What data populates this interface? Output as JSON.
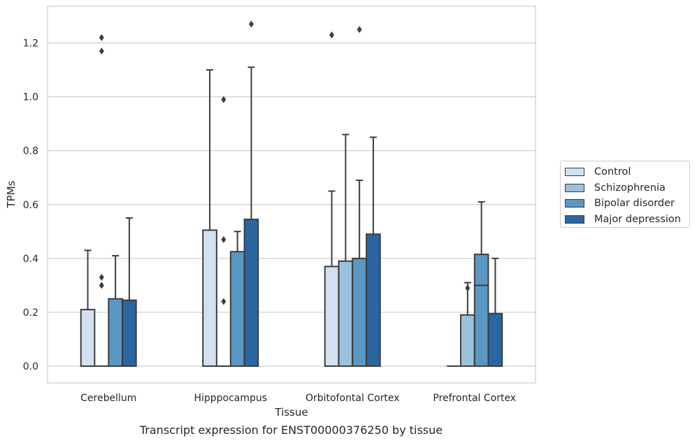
{
  "caption": "Transcript expression for ENST00000376250 by tissue",
  "chart_data": {
    "type": "box",
    "xlabel": "Tissue",
    "ylabel": "TPMs",
    "ylim": [
      -0.06,
      1.34
    ],
    "yticks": [
      0.0,
      0.2,
      0.4,
      0.6,
      0.8,
      1.0,
      1.2
    ],
    "ytick_labels": [
      "0.0",
      "0.2",
      "0.4",
      "0.6",
      "0.8",
      "1.0",
      "1.2"
    ],
    "grid": "horizontal",
    "legend_position": "right",
    "categories": [
      "Cerebellum",
      "Hipppocampus",
      "Orbitofontal Cortex",
      "Prefrontal Cortex"
    ],
    "series": [
      {
        "name": "Control",
        "color": "#d2e0ef",
        "boxes": [
          {
            "q1": 0.0,
            "median": 0.0,
            "q3": 0.21,
            "whisker_low": 0.0,
            "whisker_high": 0.43,
            "outliers": []
          },
          {
            "q1": 0.0,
            "median": 0.0,
            "q3": 0.505,
            "whisker_low": 0.0,
            "whisker_high": 1.1,
            "outliers": []
          },
          {
            "q1": 0.0,
            "median": 0.0,
            "q3": 0.37,
            "whisker_low": 0.0,
            "whisker_high": 0.65,
            "outliers": [
              1.23
            ]
          },
          {
            "q1": 0.0,
            "median": 0.0,
            "q3": 0.0,
            "whisker_low": 0.0,
            "whisker_high": 0.0,
            "outliers": []
          }
        ]
      },
      {
        "name": "Schizophrenia",
        "color": "#9bc2dc",
        "boxes": [
          {
            "q1": 0.0,
            "median": 0.0,
            "q3": 0.0,
            "whisker_low": 0.0,
            "whisker_high": 0.0,
            "outliers": [
              0.3,
              0.33,
              1.17,
              1.22
            ]
          },
          {
            "q1": 0.0,
            "median": 0.0,
            "q3": 0.0,
            "whisker_low": 0.0,
            "whisker_high": 0.0,
            "outliers": [
              0.24,
              0.47,
              0.99
            ]
          },
          {
            "q1": 0.0,
            "median": 0.0,
            "q3": 0.39,
            "whisker_low": 0.0,
            "whisker_high": 0.86,
            "outliers": []
          },
          {
            "q1": 0.0,
            "median": 0.0,
            "q3": 0.19,
            "whisker_low": 0.0,
            "whisker_high": 0.31,
            "outliers": [
              0.29
            ]
          }
        ]
      },
      {
        "name": "Bipolar disorder",
        "color": "#5a97c3",
        "boxes": [
          {
            "q1": 0.0,
            "median": 0.0,
            "q3": 0.25,
            "whisker_low": 0.0,
            "whisker_high": 0.41,
            "outliers": []
          },
          {
            "q1": 0.0,
            "median": 0.0,
            "q3": 0.425,
            "whisker_low": 0.0,
            "whisker_high": 0.5,
            "outliers": []
          },
          {
            "q1": 0.0,
            "median": 0.0,
            "q3": 0.4,
            "whisker_low": 0.0,
            "whisker_high": 0.69,
            "outliers": [
              1.25
            ]
          },
          {
            "q1": 0.0,
            "median": 0.3,
            "q3": 0.415,
            "whisker_low": 0.0,
            "whisker_high": 0.61,
            "outliers": []
          }
        ]
      },
      {
        "name": "Major depression",
        "color": "#2a66a1",
        "boxes": [
          {
            "q1": 0.0,
            "median": 0.0,
            "q3": 0.245,
            "whisker_low": 0.0,
            "whisker_high": 0.55,
            "outliers": []
          },
          {
            "q1": 0.0,
            "median": 0.0,
            "q3": 0.545,
            "whisker_low": 0.0,
            "whisker_high": 1.11,
            "outliers": [
              1.27
            ]
          },
          {
            "q1": 0.0,
            "median": 0.0,
            "q3": 0.49,
            "whisker_low": 0.0,
            "whisker_high": 0.85,
            "outliers": []
          },
          {
            "q1": 0.0,
            "median": 0.0,
            "q3": 0.195,
            "whisker_low": 0.0,
            "whisker_high": 0.4,
            "outliers": []
          }
        ]
      }
    ]
  }
}
